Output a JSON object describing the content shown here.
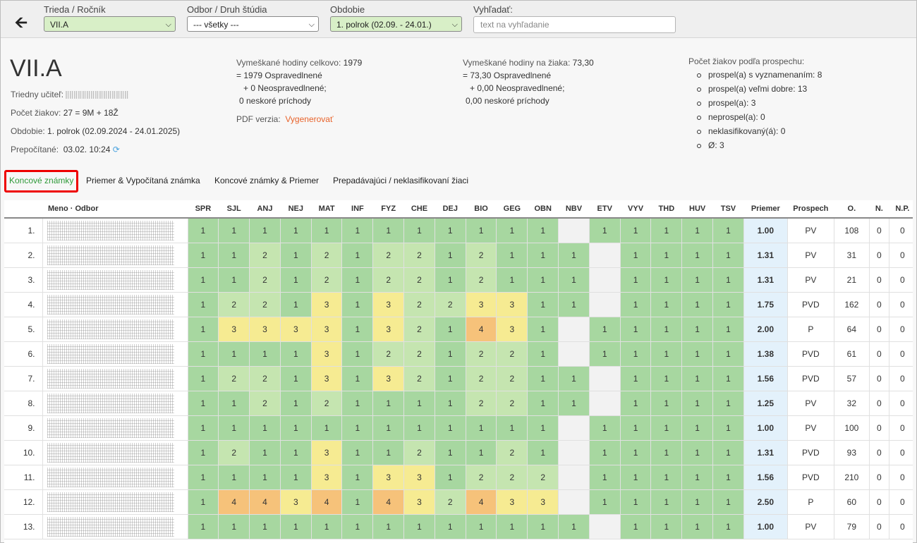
{
  "filters": {
    "class": {
      "label": "Trieda / Ročník",
      "value": "VII.A"
    },
    "field": {
      "label": "Odbor / Druh štúdia",
      "value": "--- všetky ---"
    },
    "period": {
      "label": "Obdobie",
      "value": "1. polrok (02.09. - 24.01.)"
    },
    "search": {
      "label": "Vyhľadať:",
      "placeholder": "text na vyhľadanie"
    }
  },
  "class_info": {
    "title": "VII.A",
    "teacher_label": "Triedny učiteľ:",
    "students_label": "Počet žiakov:",
    "students_value": "27 = 9M + 18Ž",
    "period_label": "Obdobie:",
    "period_value": "1. polrok (02.09.2024 - 24.01.2025)",
    "recalc_label": "Prepočítané:",
    "recalc_value": "03.02. 10:24"
  },
  "absence_total": {
    "label": "Vymeškané hodiny celkovo:",
    "value": "1979",
    "excused": "= 1979 Ospravedlnené",
    "unexcused": "+ 0 Neospravedlnené;",
    "late": "0 neskoré príchody"
  },
  "pdf": {
    "label": "PDF verzia:",
    "action": "Vygenerovať"
  },
  "absence_per_student": {
    "label": "Vymeškané hodiny na žiaka:",
    "value": "73,30",
    "excused": "= 73,30 Ospravedlnené",
    "unexcused": "+ 0,00 Neospravedlnené;",
    "late": "0,00 neskoré príchody"
  },
  "performance": {
    "title": "Počet žiakov podľa prospechu:",
    "items": [
      "prospel(a) s vyznamenaním: 8",
      "prospel(a) veľmi dobre: 13",
      "prospel(a): 3",
      "neprospel(a): 0",
      "neklasifikovaný(á): 0",
      "Ø: 3"
    ]
  },
  "tabs": [
    "Koncové známky",
    "Priemer & Vypočítaná známka",
    "Koncové známky & Priemer",
    "Prepadávajúci / neklasifikovaní žiaci"
  ],
  "table": {
    "name_header": "Meno · Odbor",
    "subjects": [
      "SPR",
      "SJL",
      "ANJ",
      "NEJ",
      "MAT",
      "INF",
      "FYZ",
      "CHE",
      "DEJ",
      "BIO",
      "GEG",
      "OBN",
      "NBV",
      "ETV",
      "VYV",
      "THD",
      "HUV",
      "TSV"
    ],
    "extra_headers": [
      "Priemer",
      "Prospech",
      "O.",
      "N.",
      "N.P."
    ],
    "rows": [
      {
        "n": "1.",
        "g": [
          "1",
          "1",
          "1",
          "1",
          "1",
          "1",
          "1",
          "1",
          "1",
          "1",
          "1",
          "1",
          "",
          "1",
          "1",
          "1",
          "1",
          "1"
        ],
        "avg": "1.00",
        "p": "PV",
        "o": "108",
        "nn": "0",
        "np": "0"
      },
      {
        "n": "2.",
        "g": [
          "1",
          "1",
          "2",
          "1",
          "2",
          "1",
          "2",
          "2",
          "1",
          "2",
          "1",
          "1",
          "1",
          "",
          "1",
          "1",
          "1",
          "1"
        ],
        "avg": "1.31",
        "p": "PV",
        "o": "31",
        "nn": "0",
        "np": "0"
      },
      {
        "n": "3.",
        "g": [
          "1",
          "1",
          "2",
          "1",
          "2",
          "1",
          "2",
          "2",
          "1",
          "2",
          "1",
          "1",
          "1",
          "",
          "1",
          "1",
          "1",
          "1"
        ],
        "avg": "1.31",
        "p": "PV",
        "o": "21",
        "nn": "0",
        "np": "0"
      },
      {
        "n": "4.",
        "g": [
          "1",
          "2",
          "2",
          "1",
          "3",
          "1",
          "3",
          "2",
          "2",
          "3",
          "3",
          "1",
          "1",
          "",
          "1",
          "1",
          "1",
          "1"
        ],
        "avg": "1.75",
        "p": "PVD",
        "o": "162",
        "nn": "0",
        "np": "0"
      },
      {
        "n": "5.",
        "g": [
          "1",
          "3",
          "3",
          "3",
          "3",
          "1",
          "3",
          "2",
          "1",
          "4",
          "3",
          "1",
          "",
          "1",
          "1",
          "1",
          "1",
          "1"
        ],
        "avg": "2.00",
        "p": "P",
        "o": "64",
        "nn": "0",
        "np": "0"
      },
      {
        "n": "6.",
        "g": [
          "1",
          "1",
          "1",
          "1",
          "3",
          "1",
          "2",
          "2",
          "1",
          "2",
          "2",
          "1",
          "",
          "1",
          "1",
          "1",
          "1",
          "1"
        ],
        "avg": "1.38",
        "p": "PVD",
        "o": "61",
        "nn": "0",
        "np": "0"
      },
      {
        "n": "7.",
        "g": [
          "1",
          "2",
          "2",
          "1",
          "3",
          "1",
          "3",
          "2",
          "1",
          "2",
          "2",
          "1",
          "1",
          "",
          "1",
          "1",
          "1",
          "1"
        ],
        "avg": "1.56",
        "p": "PVD",
        "o": "57",
        "nn": "0",
        "np": "0"
      },
      {
        "n": "8.",
        "g": [
          "1",
          "1",
          "2",
          "1",
          "2",
          "1",
          "1",
          "1",
          "1",
          "2",
          "2",
          "1",
          "1",
          "",
          "1",
          "1",
          "1",
          "1"
        ],
        "avg": "1.25",
        "p": "PV",
        "o": "32",
        "nn": "0",
        "np": "0"
      },
      {
        "n": "9.",
        "g": [
          "1",
          "1",
          "1",
          "1",
          "1",
          "1",
          "1",
          "1",
          "1",
          "1",
          "1",
          "1",
          "",
          "1",
          "1",
          "1",
          "1",
          "1"
        ],
        "avg": "1.00",
        "p": "PV",
        "o": "100",
        "nn": "0",
        "np": "0"
      },
      {
        "n": "10.",
        "g": [
          "1",
          "2",
          "1",
          "1",
          "3",
          "1",
          "1",
          "2",
          "1",
          "1",
          "2",
          "1",
          "",
          "1",
          "1",
          "1",
          "1",
          "1"
        ],
        "avg": "1.31",
        "p": "PVD",
        "o": "93",
        "nn": "0",
        "np": "0"
      },
      {
        "n": "11.",
        "g": [
          "1",
          "1",
          "1",
          "1",
          "3",
          "1",
          "3",
          "3",
          "1",
          "2",
          "2",
          "2",
          "",
          "1",
          "1",
          "1",
          "1",
          "1"
        ],
        "avg": "1.56",
        "p": "PVD",
        "o": "210",
        "nn": "0",
        "np": "0"
      },
      {
        "n": "12.",
        "g": [
          "1",
          "4",
          "4",
          "3",
          "4",
          "1",
          "4",
          "3",
          "2",
          "4",
          "3",
          "3",
          "",
          "1",
          "1",
          "1",
          "1",
          "1"
        ],
        "avg": "2.50",
        "p": "P",
        "o": "60",
        "nn": "0",
        "np": "0"
      },
      {
        "n": "13.",
        "g": [
          "1",
          "1",
          "1",
          "1",
          "1",
          "1",
          "1",
          "1",
          "1",
          "1",
          "1",
          "1",
          "1",
          "",
          "1",
          "1",
          "1",
          "1"
        ],
        "avg": "1.00",
        "p": "PV",
        "o": "79",
        "nn": "0",
        "np": "0"
      }
    ]
  },
  "colors": {
    "grade1": "#a7d7a0",
    "grade2": "#c5e5b0",
    "grade3": "#f6eb92",
    "grade4": "#f6c27a",
    "average_bg": "#e3f1fb",
    "active_tab_border": "#ee0000",
    "link": "#e8632b"
  },
  "icons": {
    "back": "arrow-left-icon",
    "refresh": "refresh-icon",
    "dropdown": "chevron-down-icon"
  }
}
